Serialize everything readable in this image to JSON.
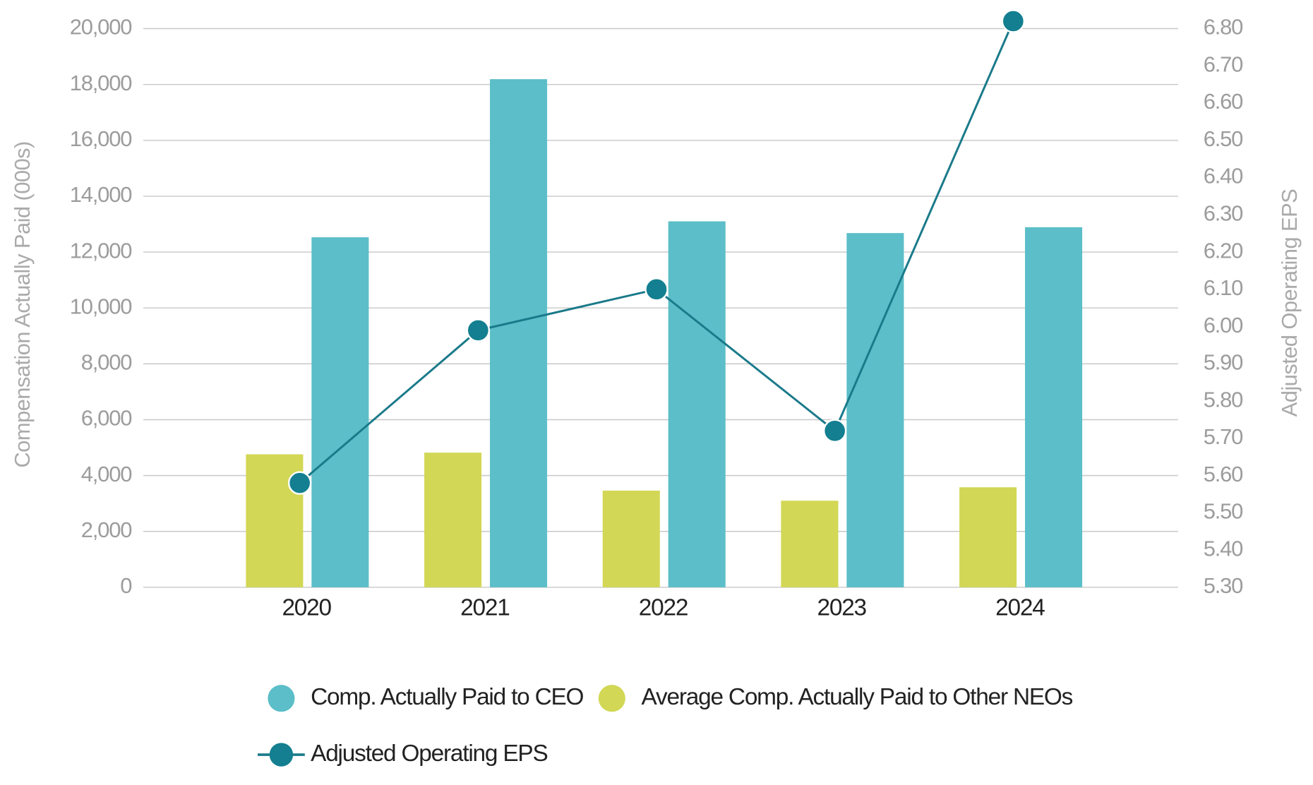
{
  "chart_data": {
    "type": "bar",
    "categories": [
      "2020",
      "2021",
      "2022",
      "2023",
      "2024"
    ],
    "y_label": "Compensation Actually Paid (000s)",
    "y2_label": "Adjusted Operating EPS",
    "ylim": [
      0,
      20000
    ],
    "yticks": [
      0,
      {
        "value": 2000,
        "label": "2,000"
      },
      {
        "value": 4000,
        "label": "4,000"
      },
      {
        "value": 6000,
        "label": "6,000"
      },
      {
        "value": 8000,
        "label": "8,000"
      },
      {
        "value": 10000,
        "label": "10,000"
      },
      {
        "value": 12000,
        "label": "12,000"
      },
      {
        "value": 14000,
        "label": "14,000"
      },
      {
        "value": 16000,
        "label": "16,000"
      },
      {
        "value": 18000,
        "label": "18,000"
      },
      {
        "value": 20000,
        "label": "20,000"
      }
    ],
    "y2lim": [
      5.3,
      6.8
    ],
    "y2ticks": [
      {
        "value": 5.3,
        "label": "5.30"
      },
      {
        "value": 5.4,
        "label": "5.40"
      },
      {
        "value": 5.5,
        "label": "5.50"
      },
      {
        "value": 5.6,
        "label": "5.60"
      },
      {
        "value": 5.7,
        "label": "5.70"
      },
      {
        "value": 5.8,
        "label": "5.80"
      },
      {
        "value": 5.9,
        "label": "5.90"
      },
      {
        "value": 6.0,
        "label": "6.00"
      },
      {
        "value": 6.1,
        "label": "6.10"
      },
      {
        "value": 6.2,
        "label": "6.20"
      },
      {
        "value": 6.3,
        "label": "6.30"
      },
      {
        "value": 6.4,
        "label": "6.40"
      },
      {
        "value": 6.5,
        "label": "6.50"
      },
      {
        "value": 6.6,
        "label": "6.60"
      },
      {
        "value": 6.7,
        "label": "6.70"
      },
      {
        "value": 6.8,
        "label": "6.80"
      }
    ],
    "grid": true,
    "series": [
      {
        "name": "Average Comp. Actually Paid to Other NEOs",
        "color": "#d2d755",
        "values": [
          4760,
          4820,
          3460,
          3100,
          3580
        ]
      },
      {
        "name": "Comp. Actually Paid to CEO",
        "color": "#5bbec8",
        "values": [
          12530,
          18190,
          13100,
          12680,
          12890
        ]
      },
      {
        "name": "Adjusted Operating EPS",
        "color": "#1a7a8a",
        "type": "line",
        "axis": "y2",
        "values": [
          5.58,
          5.99,
          6.1,
          5.72,
          6.82
        ]
      }
    ]
  }
}
